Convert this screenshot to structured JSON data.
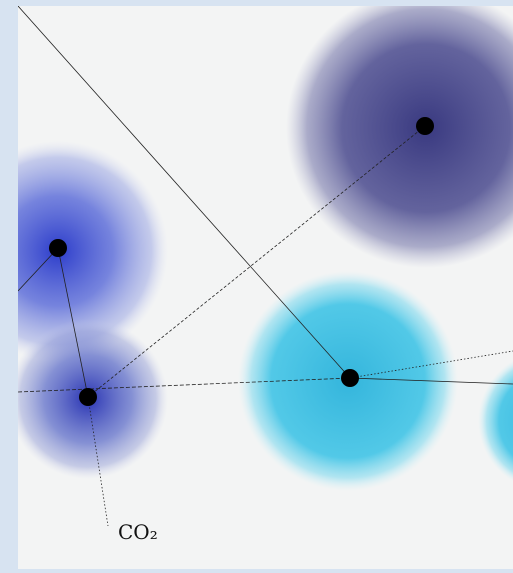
{
  "diagram": {
    "colors": {
      "background": "#f3f4f4",
      "frame": "#d7e3f1",
      "node_dot": "#000000",
      "line": "#222222"
    },
    "nodes": [
      {
        "id": "n1",
        "name": "dark-purple-cloud",
        "color": "#3f3f86"
      },
      {
        "id": "n2",
        "name": "blue-cloud-left",
        "color": "#3a4fd0"
      },
      {
        "id": "n3",
        "name": "blue-cloud-lower",
        "color": "#3340b8"
      },
      {
        "id": "n4",
        "name": "cyan-cloud-center",
        "color": "#38bfe0"
      },
      {
        "id": "n5",
        "name": "cyan-cloud-right",
        "color": "#40c8e8"
      }
    ],
    "label": "CO₂"
  }
}
